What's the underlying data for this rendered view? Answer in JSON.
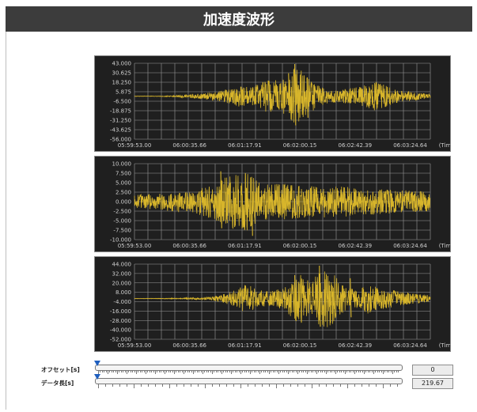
{
  "header": {
    "title": "加速度波形"
  },
  "colors": {
    "wave": "#d7b52b",
    "chart_bg": "#1f1f1f",
    "grid": "#9a9a9a",
    "text": "#cfcfcf",
    "header_bg": "#3c3c3c"
  },
  "controls": {
    "offset_label": "オフセット[s]",
    "offset_value": "0",
    "length_label": "データ長[s]",
    "length_value": "219.67"
  },
  "chart_data": [
    {
      "type": "line",
      "x_ticks": [
        "05:59:53.00",
        "06:00:35.66",
        "06:01:17.91",
        "06:02:00.15",
        "06:02:42.39",
        "06:03:24.64"
      ],
      "x_unit": "(Time)",
      "y_ticks": [
        "43.000",
        "30.625",
        "18.250",
        "5.875",
        "-6.500",
        "-18.875",
        "-31.250",
        "-43.625",
        "-56.000"
      ],
      "ylim": [
        -56,
        43
      ],
      "envelope": [
        0.3,
        0.3,
        0.3,
        0.3,
        0.4,
        0.5,
        0.7,
        1.2,
        2,
        2.5,
        3,
        4,
        5,
        5.5,
        7,
        9,
        11,
        14,
        13,
        12,
        16,
        20,
        21,
        22,
        22,
        26,
        38,
        35,
        28,
        20,
        13,
        10,
        9,
        8,
        9,
        11,
        12,
        14,
        16,
        19,
        18,
        14,
        10,
        8,
        7,
        6,
        5,
        4,
        3
      ],
      "spikes": [
        [
          26,
          42,
          -38
        ],
        [
          25,
          30,
          -22
        ],
        [
          28,
          24,
          -28
        ]
      ]
    },
    {
      "type": "line",
      "x_ticks": [
        "05:59:53.00",
        "06:00:35.66",
        "06:01:17.91",
        "06:02:00.15",
        "06:02:42.39",
        "06:03:24.64"
      ],
      "x_unit": "(Time)",
      "y_ticks": [
        "10.000",
        "7.500",
        "5.000",
        "2.500",
        "0.000",
        "-2.500",
        "-5.000",
        "-7.500",
        "-10.000"
      ],
      "ylim": [
        -10,
        10
      ],
      "envelope": [
        1.8,
        1.9,
        2,
        2,
        2.1,
        2.3,
        2.6,
        2.8,
        2.5,
        2.7,
        3.2,
        3.7,
        4.2,
        5,
        5.8,
        6.5,
        7,
        7.5,
        7.8,
        7,
        6,
        5,
        4.5,
        4.6,
        4.8,
        4.6,
        4.5,
        4.4,
        4.3,
        4.2,
        4.3,
        4.2,
        4,
        4.1,
        4,
        3.8,
        3.6,
        3.5,
        3.4,
        3.4,
        3.3,
        3.2,
        3.1,
        3,
        3,
        2.9,
        2.8,
        2.8,
        2.7
      ],
      "spikes": [
        [
          14,
          8,
          -7
        ],
        [
          19,
          6.5,
          -9
        ]
      ]
    },
    {
      "type": "line",
      "x_ticks": [
        "05:59:53.00",
        "06:00:35.66",
        "06:01:17.91",
        "06:02:00.15",
        "06:02:42.39",
        "06:03:24.64"
      ],
      "x_unit": "(Time)",
      "y_ticks": [
        "44.000",
        "32.000",
        "20.000",
        "8.000",
        "-4.000",
        "-16.000",
        "-28.000",
        "-40.000",
        "-52.000"
      ],
      "ylim": [
        -52,
        44
      ],
      "envelope": [
        0.3,
        0.3,
        0.3,
        0.3,
        0.3,
        0.4,
        0.5,
        0.6,
        0.8,
        1,
        1.2,
        1.5,
        2,
        3,
        5,
        7,
        10,
        14,
        18,
        16,
        12,
        10,
        9,
        11,
        14,
        20,
        28,
        33,
        26,
        24,
        36,
        40,
        34,
        25,
        17,
        13,
        12,
        15,
        20,
        18,
        14,
        12,
        11,
        9,
        8,
        7,
        6,
        5,
        4
      ],
      "spikes": [
        [
          30,
          42,
          -36
        ],
        [
          26,
          30,
          -28
        ],
        [
          35,
          26,
          -24
        ]
      ]
    }
  ]
}
